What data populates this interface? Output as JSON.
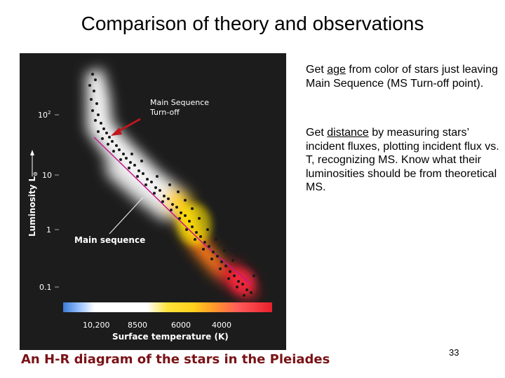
{
  "slide": {
    "title": "Comparison of theory and observations",
    "page_number": "33"
  },
  "figure": {
    "caption": "An H-R diagram of the stars in the Pleiades",
    "annotation": {
      "label_line1": "Main Sequence",
      "label_line2": "Turn-off",
      "arrow_color": "#c0161c"
    },
    "main_sequence_label": "Main sequence",
    "y_axis": {
      "label": "Luminosity L",
      "label_sub": "⊙",
      "ticks": [
        {
          "base": "10",
          "exp": "2"
        },
        {
          "base": "10",
          "exp": ""
        },
        {
          "base": "1",
          "exp": ""
        },
        {
          "base": "0.1",
          "exp": ""
        }
      ]
    },
    "x_axis": {
      "label": "Surface temperature (K)",
      "ticks": [
        "10,200",
        "8500",
        "6000",
        "4000"
      ]
    },
    "colors": {
      "background": "#1c1c1c",
      "caption": "#7a1216",
      "glow_blue_white": "#ffffff",
      "glow_yellow": "#ffd21c",
      "glow_orange": "#ff7a18",
      "glow_red": "#e8202a",
      "main_sequence_line": "#c8168c"
    }
  },
  "text": {
    "para1": {
      "before": "Get ",
      "underlined": "age",
      "after": " from color of stars just leaving Main Sequence (MS Turn-off point)."
    },
    "para2": {
      "before": "Get ",
      "underlined": "distance",
      "after": " by measuring stars’ incident fluxes, plotting incident flux vs. T, recognizing MS.  Know what their luminosities should be from theoretical MS."
    }
  }
}
